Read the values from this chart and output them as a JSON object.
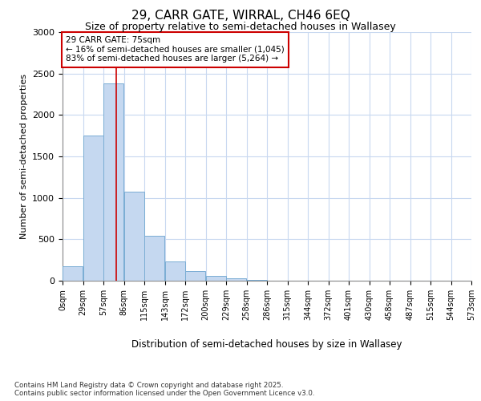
{
  "title_line1": "29, CARR GATE, WIRRAL, CH46 6EQ",
  "title_line2": "Size of property relative to semi-detached houses in Wallasey",
  "xlabel": "Distribution of semi-detached houses by size in Wallasey",
  "ylabel": "Number of semi-detached properties",
  "footnote": "Contains HM Land Registry data © Crown copyright and database right 2025.\nContains public sector information licensed under the Open Government Licence v3.0.",
  "annotation_title": "29 CARR GATE: 75sqm",
  "annotation_line2": "← 16% of semi-detached houses are smaller (1,045)",
  "annotation_line3": "83% of semi-detached houses are larger (5,264) →",
  "property_size": 75,
  "bin_edges": [
    0,
    28.5,
    57,
    85.5,
    114,
    142.5,
    171,
    199.5,
    228,
    256.5,
    285,
    313.5,
    342,
    370.5,
    399,
    427.5,
    456,
    484.5,
    513,
    541.5,
    570
  ],
  "bin_labels": [
    "0sqm",
    "29sqm",
    "57sqm",
    "86sqm",
    "115sqm",
    "143sqm",
    "172sqm",
    "200sqm",
    "229sqm",
    "258sqm",
    "286sqm",
    "315sqm",
    "344sqm",
    "372sqm",
    "401sqm",
    "430sqm",
    "458sqm",
    "487sqm",
    "515sqm",
    "544sqm",
    "573sqm"
  ],
  "values": [
    170,
    1750,
    2380,
    1070,
    540,
    230,
    120,
    60,
    30,
    10,
    0,
    0,
    0,
    0,
    0,
    0,
    0,
    0,
    0,
    0
  ],
  "bar_color": "#c5d8f0",
  "bar_edge_color": "#7aadd4",
  "vline_color": "#cc0000",
  "vline_x": 75,
  "annotation_box_edgecolor": "#cc0000",
  "ylim": [
    0,
    3000
  ],
  "yticks": [
    0,
    500,
    1000,
    1500,
    2000,
    2500,
    3000
  ],
  "grid_color": "#c8d8f0",
  "plot_bg_color": "#ffffff",
  "fig_bg_color": "#ffffff"
}
